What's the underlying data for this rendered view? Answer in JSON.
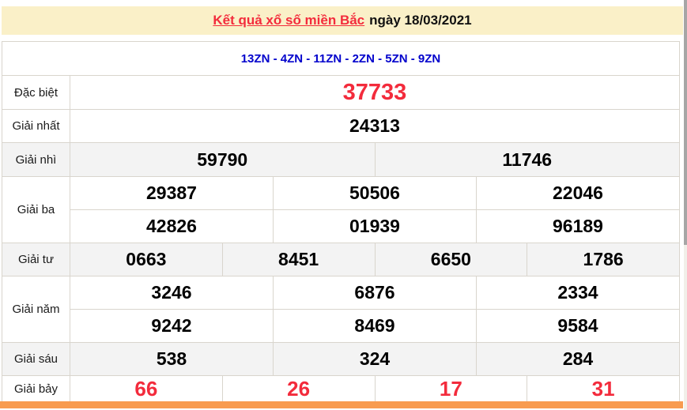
{
  "page": {
    "title_link": "Kết quả xổ số miền Bắc",
    "title_date": "ngày 18/03/2021",
    "zn_line": "13ZN - 4ZN - 11ZN - 2ZN - 5ZN - 9ZN"
  },
  "colors": {
    "accent_red": "#f32b3c",
    "link_blue": "#0000cc",
    "header_bg": "#faf0c8",
    "stripe_bg": "#f3f3f3",
    "orange_bar": "#f89b4f",
    "border": "#d9d5cd"
  },
  "results": {
    "special": {
      "label": "Đặc biệt",
      "values": [
        "37733"
      ]
    },
    "first": {
      "label": "Giải nhất",
      "values": [
        "24313"
      ]
    },
    "second": {
      "label": "Giải nhì",
      "values": [
        "59790",
        "11746"
      ]
    },
    "third": {
      "label": "Giải ba",
      "row1": [
        "29387",
        "50506",
        "22046"
      ],
      "row2": [
        "42826",
        "01939",
        "96189"
      ]
    },
    "fourth": {
      "label": "Giải tư",
      "values": [
        "0663",
        "8451",
        "6650",
        "1786"
      ]
    },
    "fifth": {
      "label": "Giải năm",
      "row1": [
        "3246",
        "6876",
        "2334"
      ],
      "row2": [
        "9242",
        "8469",
        "9584"
      ]
    },
    "sixth": {
      "label": "Giải sáu",
      "values": [
        "538",
        "324",
        "284"
      ]
    },
    "seventh": {
      "label": "Giải bảy",
      "values": [
        "66",
        "26",
        "17",
        "31"
      ]
    }
  }
}
